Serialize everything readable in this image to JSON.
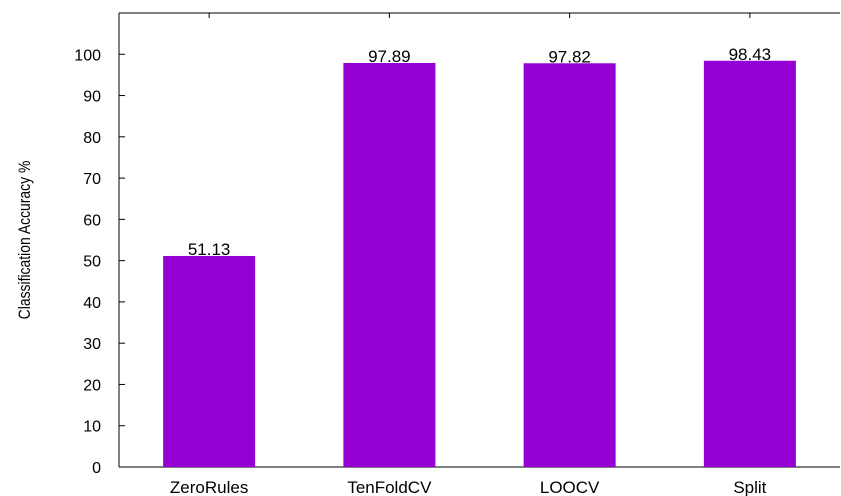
{
  "chart_data": {
    "type": "bar",
    "categories": [
      "ZeroRules",
      "TenFoldCV",
      "LOOCV",
      "Split"
    ],
    "values": [
      51.13,
      97.89,
      97.82,
      98.43
    ],
    "data_labels": [
      "51.13",
      "97.89",
      "97.82",
      "98.43"
    ],
    "title": "",
    "xlabel": "",
    "ylabel": "Classification Accuracy %",
    "ylim": [
      0,
      110
    ],
    "yticks": [
      0,
      10,
      20,
      30,
      40,
      50,
      60,
      70,
      80,
      90,
      100
    ],
    "grid": false,
    "legend": "none",
    "bar_color": "#9400D3"
  }
}
